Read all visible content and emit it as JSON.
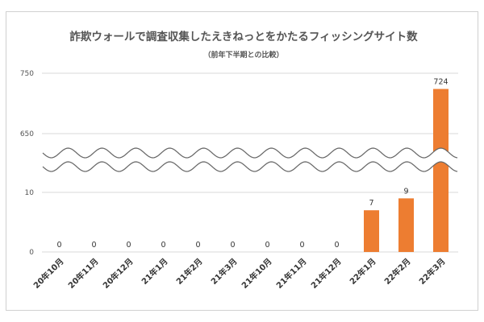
{
  "chart_data": {
    "type": "bar",
    "title": "詐欺ウォールで調査収集したえきねっとをかたるフィッシングサイト数",
    "subtitle": "（前年下半期との比較）",
    "categories": [
      "20年10月",
      "20年11月",
      "20年12月",
      "21年1月",
      "21年2月",
      "21年3月",
      "21年10月",
      "21年11月",
      "21年12月",
      "22年1月",
      "22年2月",
      "22年3月"
    ],
    "series": [
      {
        "values": [
          0,
          0,
          0,
          0,
          0,
          0,
          0,
          0,
          0,
          7,
          9,
          724
        ]
      }
    ],
    "y_ticks": [
      "0",
      "10",
      "650",
      "750"
    ],
    "broken_axis": {
      "lower_range": [
        0,
        20
      ],
      "upper_range": [
        600,
        750
      ]
    },
    "grid": true,
    "legend": "none",
    "bar_color": "#ED7D31",
    "gridline_color": "#d9d9d9"
  }
}
